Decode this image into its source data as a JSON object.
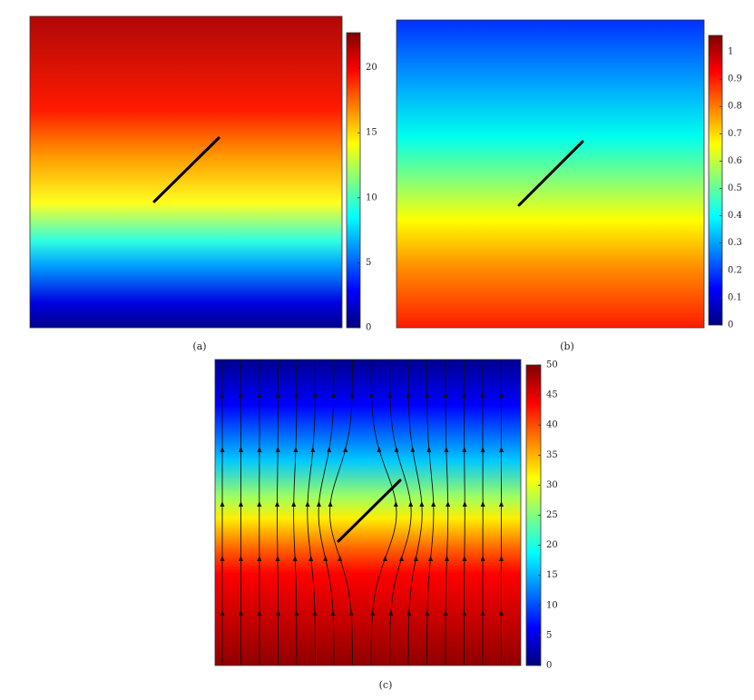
{
  "chart_data": [
    {
      "type": "heatmap",
      "caption": "(a)",
      "colormap": "jet",
      "clim": [
        0,
        22.7
      ],
      "cticks": [
        0,
        5,
        10,
        15,
        20
      ]
    },
    {
      "type": "heatmap",
      "caption": "(b)",
      "colormap": "jet",
      "clim": [
        0,
        1.06
      ],
      "cticks": [
        0,
        0.1,
        0.2,
        0.3,
        0.4,
        0.5,
        0.6,
        0.7,
        0.8,
        0.9,
        1
      ]
    },
    {
      "type": "heatmap",
      "caption": "(c)",
      "colormap": "jet",
      "clim": [
        0,
        50
      ],
      "cticks": [
        0,
        5,
        10,
        15,
        20,
        25,
        30,
        35,
        40,
        45,
        50
      ]
    }
  ]
}
